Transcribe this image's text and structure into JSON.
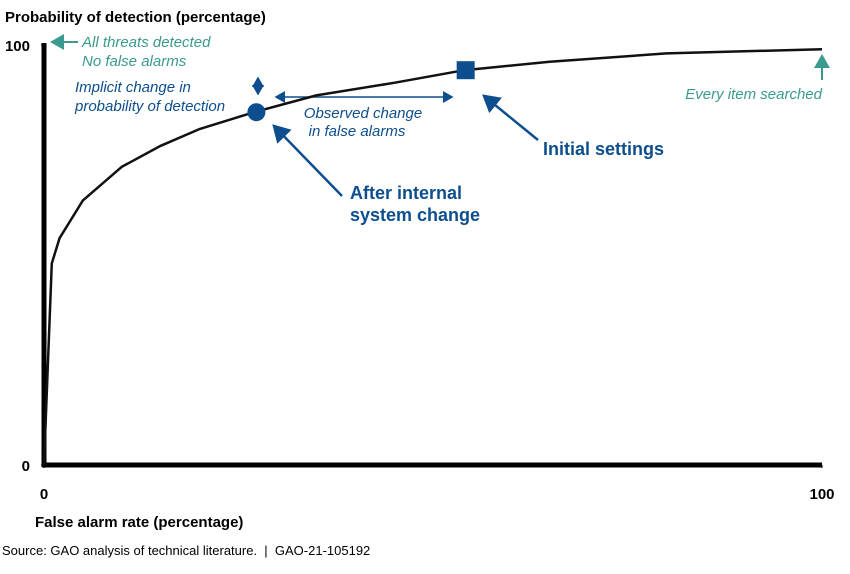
{
  "chart_data": {
    "type": "line",
    "y_label": "Probability of detection (percentage)",
    "x_label": "False alarm rate (percentage)",
    "x": [
      0,
      1,
      2,
      5,
      10,
      15,
      20,
      27,
      35,
      45,
      54,
      65,
      80,
      100
    ],
    "series": [
      {
        "color": "#111111",
        "values": [
          0,
          48,
          54,
          63,
          71,
          76,
          80,
          84,
          88,
          91,
          94,
          96,
          98,
          99
        ]
      }
    ],
    "points": {
      "x": [
        27.3,
        54.2
      ],
      "y": [
        84,
        94
      ],
      "shapes": [
        "circle",
        "square"
      ],
      "color": "#0d4e8e"
    },
    "xlim": [
      0,
      100
    ],
    "ylim": [
      0,
      100
    ],
    "xticks": [
      0,
      100
    ],
    "yticks": [
      0,
      100
    ],
    "annotations": {
      "best_corner": [
        "All threats detected",
        "No false alarms"
      ],
      "every_item": "Every item searched",
      "implicit_change": [
        "Implicit change in",
        "probability of detection"
      ],
      "observed_change": [
        "Observed change",
        "in false alarms"
      ],
      "initial": "Initial settings",
      "after": [
        "After internal",
        "system change"
      ]
    }
  },
  "source": "Source: GAO analysis of technical literature.  |  GAO-21-105192"
}
